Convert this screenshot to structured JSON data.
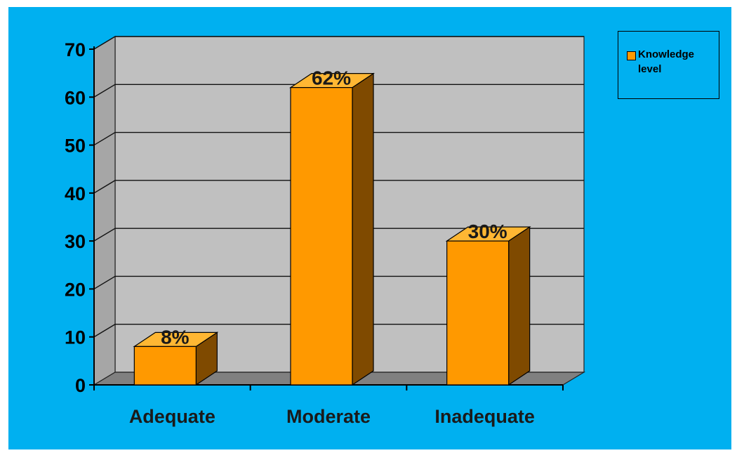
{
  "chart_data": {
    "type": "bar",
    "categories": [
      "Adequate",
      "Moderate",
      "Inadequate"
    ],
    "series": [
      {
        "name": "Knowledge level",
        "values": [
          8,
          62,
          30
        ],
        "color": "#ff9900",
        "side_color": "#7f4a00"
      }
    ],
    "data_labels": [
      "8%",
      "62%",
      "30%"
    ],
    "y_ticks": [
      "0",
      "10",
      "20",
      "30",
      "40",
      "50",
      "60",
      "70"
    ],
    "ylim": [
      0,
      70
    ],
    "grid": true,
    "legend_position": "top-right",
    "three_d": true,
    "background_color": "#00b0f0",
    "wall_color": "#c0c0c0",
    "floor_color": "#808080"
  },
  "legend": {
    "label": "Knowledge level"
  }
}
